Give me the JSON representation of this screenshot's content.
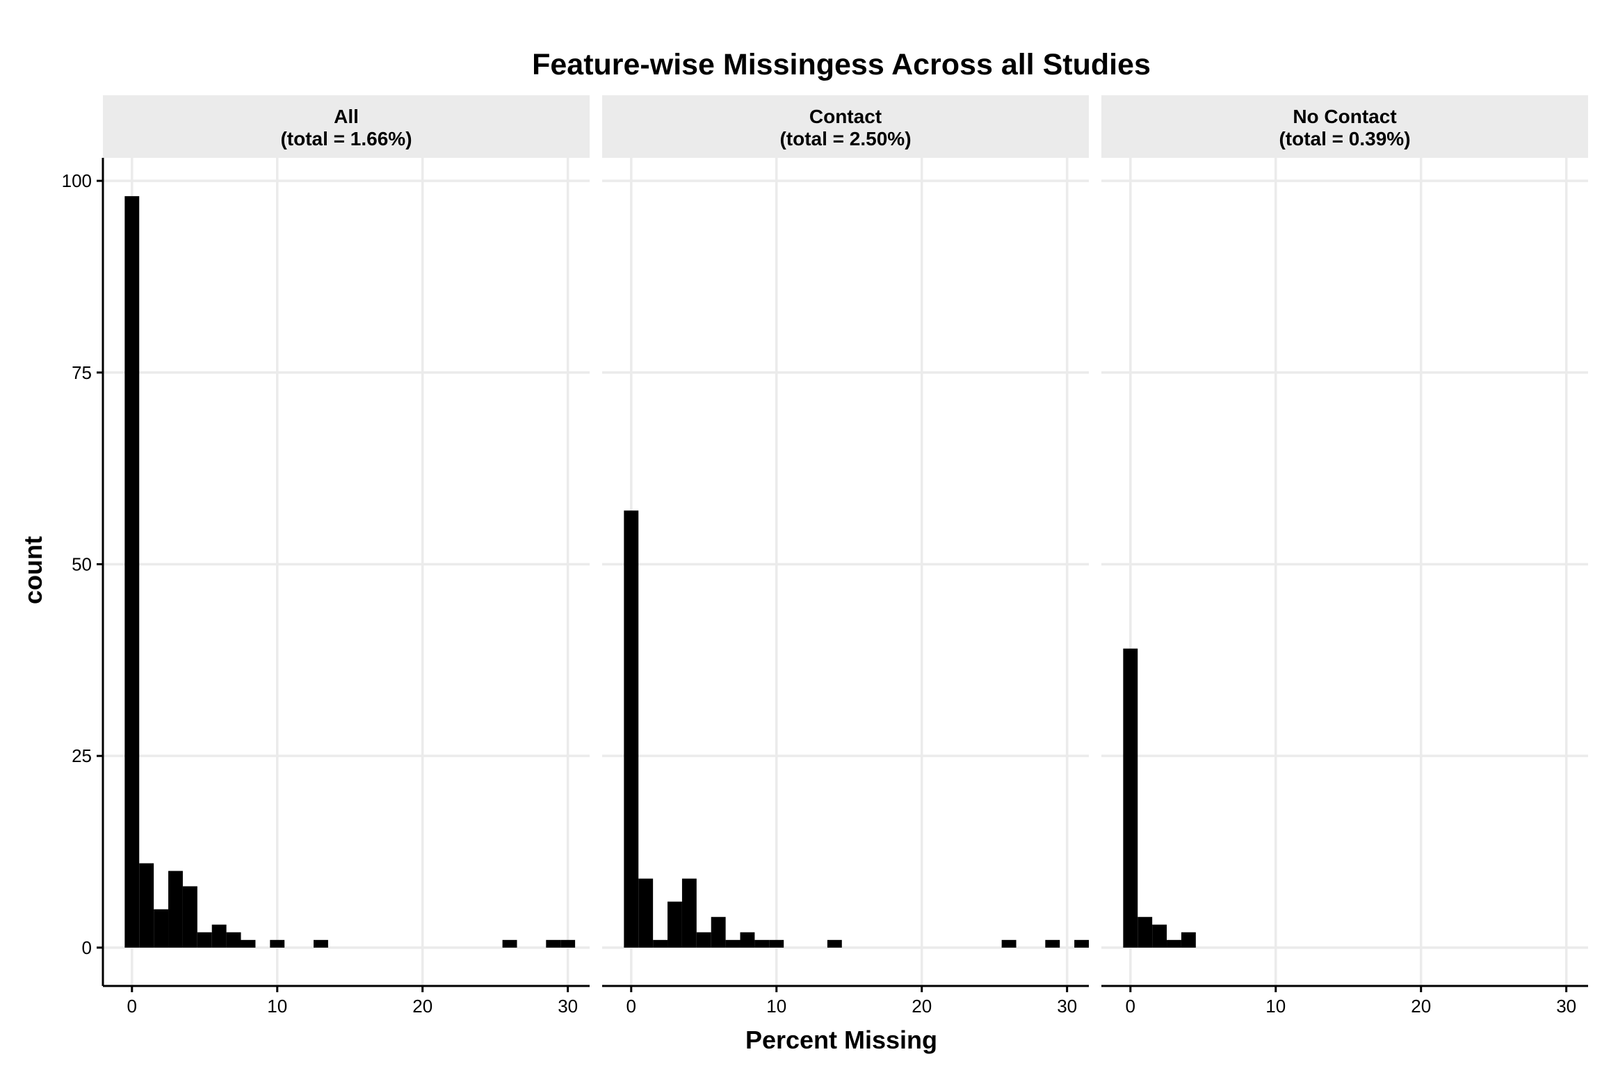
{
  "chart_data": {
    "type": "bar",
    "subtype": "faceted-histogram",
    "title": "Feature-wise Missingess Across all Studies",
    "xlabel": "Percent Missing",
    "ylabel": "count",
    "xlim": [
      -2,
      31.5
    ],
    "ylim": [
      -5,
      103
    ],
    "x_ticks": [
      "0",
      "10",
      "20",
      "30"
    ],
    "y_ticks": [
      "0",
      "25",
      "50",
      "75",
      "100"
    ],
    "x_tick_values": [
      0,
      10,
      20,
      30
    ],
    "y_tick_values": [
      0,
      25,
      50,
      75,
      100
    ],
    "bin_width": 1.0,
    "bar_color": "#000000",
    "strip_color": "#ebebeb",
    "grid": true,
    "legend": "none",
    "facets": [
      {
        "label_line1": "All",
        "label_line2": "(total = 1.66%)",
        "bins": [
          {
            "x": 0.0,
            "count": 98
          },
          {
            "x": 1.0,
            "count": 11
          },
          {
            "x": 2.0,
            "count": 5
          },
          {
            "x": 3.0,
            "count": 10
          },
          {
            "x": 4.0,
            "count": 8
          },
          {
            "x": 5.0,
            "count": 2
          },
          {
            "x": 6.0,
            "count": 3
          },
          {
            "x": 7.0,
            "count": 2
          },
          {
            "x": 8.0,
            "count": 1
          },
          {
            "x": 10.0,
            "count": 1
          },
          {
            "x": 13.0,
            "count": 1
          },
          {
            "x": 26.0,
            "count": 1
          },
          {
            "x": 29.0,
            "count": 1
          },
          {
            "x": 30.0,
            "count": 1
          }
        ]
      },
      {
        "label_line1": "Contact",
        "label_line2": "(total = 2.50%)",
        "bins": [
          {
            "x": 0.0,
            "count": 57
          },
          {
            "x": 1.0,
            "count": 9
          },
          {
            "x": 2.0,
            "count": 1
          },
          {
            "x": 3.0,
            "count": 6
          },
          {
            "x": 4.0,
            "count": 9
          },
          {
            "x": 5.0,
            "count": 2
          },
          {
            "x": 6.0,
            "count": 4
          },
          {
            "x": 7.0,
            "count": 1
          },
          {
            "x": 8.0,
            "count": 2
          },
          {
            "x": 9.0,
            "count": 1
          },
          {
            "x": 10.0,
            "count": 1
          },
          {
            "x": 14.0,
            "count": 1
          },
          {
            "x": 26.0,
            "count": 1
          },
          {
            "x": 29.0,
            "count": 1
          },
          {
            "x": 31.0,
            "count": 1
          }
        ]
      },
      {
        "label_line1": "No Contact",
        "label_line2": "(total = 0.39%)",
        "bins": [
          {
            "x": 0.0,
            "count": 39
          },
          {
            "x": 1.0,
            "count": 4
          },
          {
            "x": 2.0,
            "count": 3
          },
          {
            "x": 3.0,
            "count": 1
          },
          {
            "x": 4.0,
            "count": 2
          }
        ]
      }
    ]
  }
}
